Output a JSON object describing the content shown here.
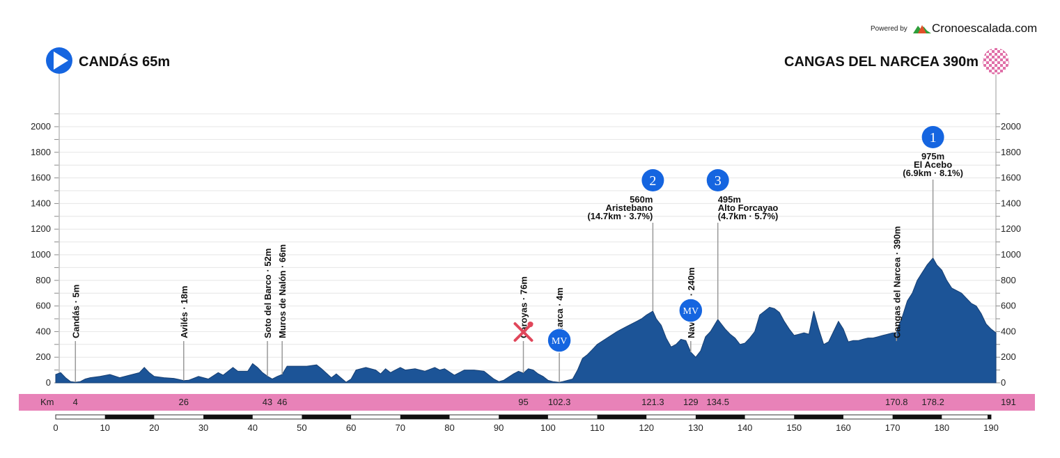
{
  "powered_by": "Powered by",
  "brand": "Cronoescalada.com",
  "start_label": "CANDÁS 65m",
  "finish_label": "CANGAS DEL NARCEA 390m",
  "km_label": "Km",
  "colors": {
    "profile_fill": "#1c5497",
    "km_band": "#e882b8",
    "marker_blue": "#1565e0",
    "finish_pink": "#e070a8",
    "feed_red": "#e0465a"
  },
  "chart_data": {
    "type": "area",
    "xlim": [
      0,
      191
    ],
    "ylim": [
      0,
      2000
    ],
    "y_ticks": [
      0,
      200,
      400,
      600,
      800,
      1000,
      1200,
      1400,
      1600,
      1800,
      2000
    ],
    "x_ticks": [
      0,
      10,
      20,
      30,
      40,
      50,
      60,
      70,
      80,
      90,
      100,
      110,
      120,
      130,
      140,
      150,
      160,
      170,
      180,
      190
    ],
    "x": [
      0,
      1,
      2,
      3,
      4,
      5,
      6,
      7,
      9,
      11,
      13,
      15,
      17,
      18,
      19,
      20,
      22,
      24,
      26,
      27,
      29,
      31,
      33,
      34,
      36,
      37,
      39,
      40,
      41,
      42,
      43,
      44,
      45,
      46,
      47,
      49,
      51,
      53,
      54,
      56,
      57,
      59,
      60,
      61,
      63,
      65,
      66,
      67,
      68,
      69,
      70,
      71,
      73,
      75,
      77,
      78,
      79,
      81,
      83,
      85,
      87,
      89,
      90,
      91,
      93,
      94,
      95,
      96,
      97,
      98,
      99,
      100,
      101,
      102.3,
      103,
      105,
      106,
      107,
      108,
      109,
      110,
      112,
      114,
      116,
      118,
      119,
      120,
      121.3,
      122,
      123,
      124,
      125,
      126,
      127,
      128,
      129,
      130,
      131,
      132,
      133,
      134.5,
      135,
      136,
      137,
      138,
      139,
      140,
      141,
      142,
      143,
      144,
      145,
      146,
      147,
      148,
      149,
      150,
      151,
      152,
      153,
      154,
      155,
      156,
      157,
      158,
      159,
      160,
      161,
      162,
      163,
      164,
      165,
      166,
      167,
      168,
      169,
      170,
      170.8,
      171,
      172,
      173,
      174,
      175,
      176,
      177,
      178.2,
      179,
      180,
      181,
      182,
      183,
      184,
      185,
      186,
      187,
      188,
      189,
      190,
      191
    ],
    "y": [
      65,
      80,
      40,
      10,
      5,
      10,
      30,
      40,
      50,
      65,
      40,
      60,
      80,
      120,
      80,
      50,
      40,
      35,
      18,
      20,
      50,
      30,
      80,
      60,
      120,
      90,
      90,
      150,
      120,
      80,
      52,
      30,
      50,
      66,
      130,
      130,
      130,
      140,
      110,
      40,
      70,
      5,
      30,
      100,
      120,
      100,
      70,
      110,
      80,
      100,
      120,
      100,
      110,
      90,
      120,
      100,
      110,
      60,
      100,
      100,
      90,
      30,
      10,
      20,
      70,
      90,
      76,
      110,
      100,
      70,
      50,
      20,
      10,
      4,
      10,
      30,
      100,
      190,
      220,
      260,
      300,
      350,
      400,
      440,
      480,
      500,
      530,
      560,
      500,
      450,
      350,
      280,
      300,
      340,
      330,
      240,
      200,
      250,
      360,
      400,
      495,
      470,
      420,
      380,
      350,
      300,
      310,
      350,
      400,
      530,
      560,
      590,
      580,
      550,
      480,
      420,
      370,
      380,
      390,
      380,
      560,
      420,
      300,
      320,
      400,
      480,
      420,
      320,
      330,
      330,
      340,
      350,
      350,
      360,
      370,
      380,
      390,
      390,
      420,
      520,
      640,
      700,
      800,
      860,
      920,
      975,
      920,
      880,
      800,
      740,
      720,
      700,
      660,
      620,
      600,
      540,
      460,
      420,
      390
    ]
  },
  "waypoints": [
    {
      "km": 4,
      "km_label": "4",
      "label": "Candás · 5m"
    },
    {
      "km": 26,
      "km_label": "26",
      "label": "Avilés · 18m"
    },
    {
      "km": 43,
      "km_label": "43",
      "label": "Soto del Barco · 52m"
    },
    {
      "km": 46,
      "km_label": "46",
      "label": "Muros de Nalón · 66m"
    },
    {
      "km": 95,
      "km_label": "95",
      "label": "Caroyas · 76m"
    },
    {
      "km": 102.3,
      "km_label": "102.3",
      "label": "Luarca · 4m"
    },
    {
      "km": 121.3,
      "km_label": "121.3",
      "label": ""
    },
    {
      "km": 129,
      "km_label": "129",
      "label": "Navelgas · 240m"
    },
    {
      "km": 134.5,
      "km_label": "134.5",
      "label": ""
    },
    {
      "km": 170.8,
      "km_label": "170.8",
      "label": "Cangas del Narcea · 390m"
    },
    {
      "km": 178.2,
      "km_label": "178.2",
      "label": ""
    },
    {
      "km": 191,
      "km_label": "191",
      "label": ""
    }
  ],
  "climbs": [
    {
      "km": 121.3,
      "number": "2",
      "alt": "560m",
      "name": "Aristebano",
      "detail": "(14.7km · 3.7%)"
    },
    {
      "km": 134.5,
      "number": "3",
      "alt": "495m",
      "name": "Alto Forcayao",
      "detail": "(4.7km · 5.7%)"
    },
    {
      "km": 178.2,
      "number": "1",
      "alt": "975m",
      "name": "El Acebo",
      "detail": "(6.9km · 8.1%)"
    }
  ],
  "sprints": [
    {
      "km": 102.3,
      "label": "MV"
    },
    {
      "km": 129,
      "label": "MV"
    }
  ],
  "feed_zone_km": 95
}
